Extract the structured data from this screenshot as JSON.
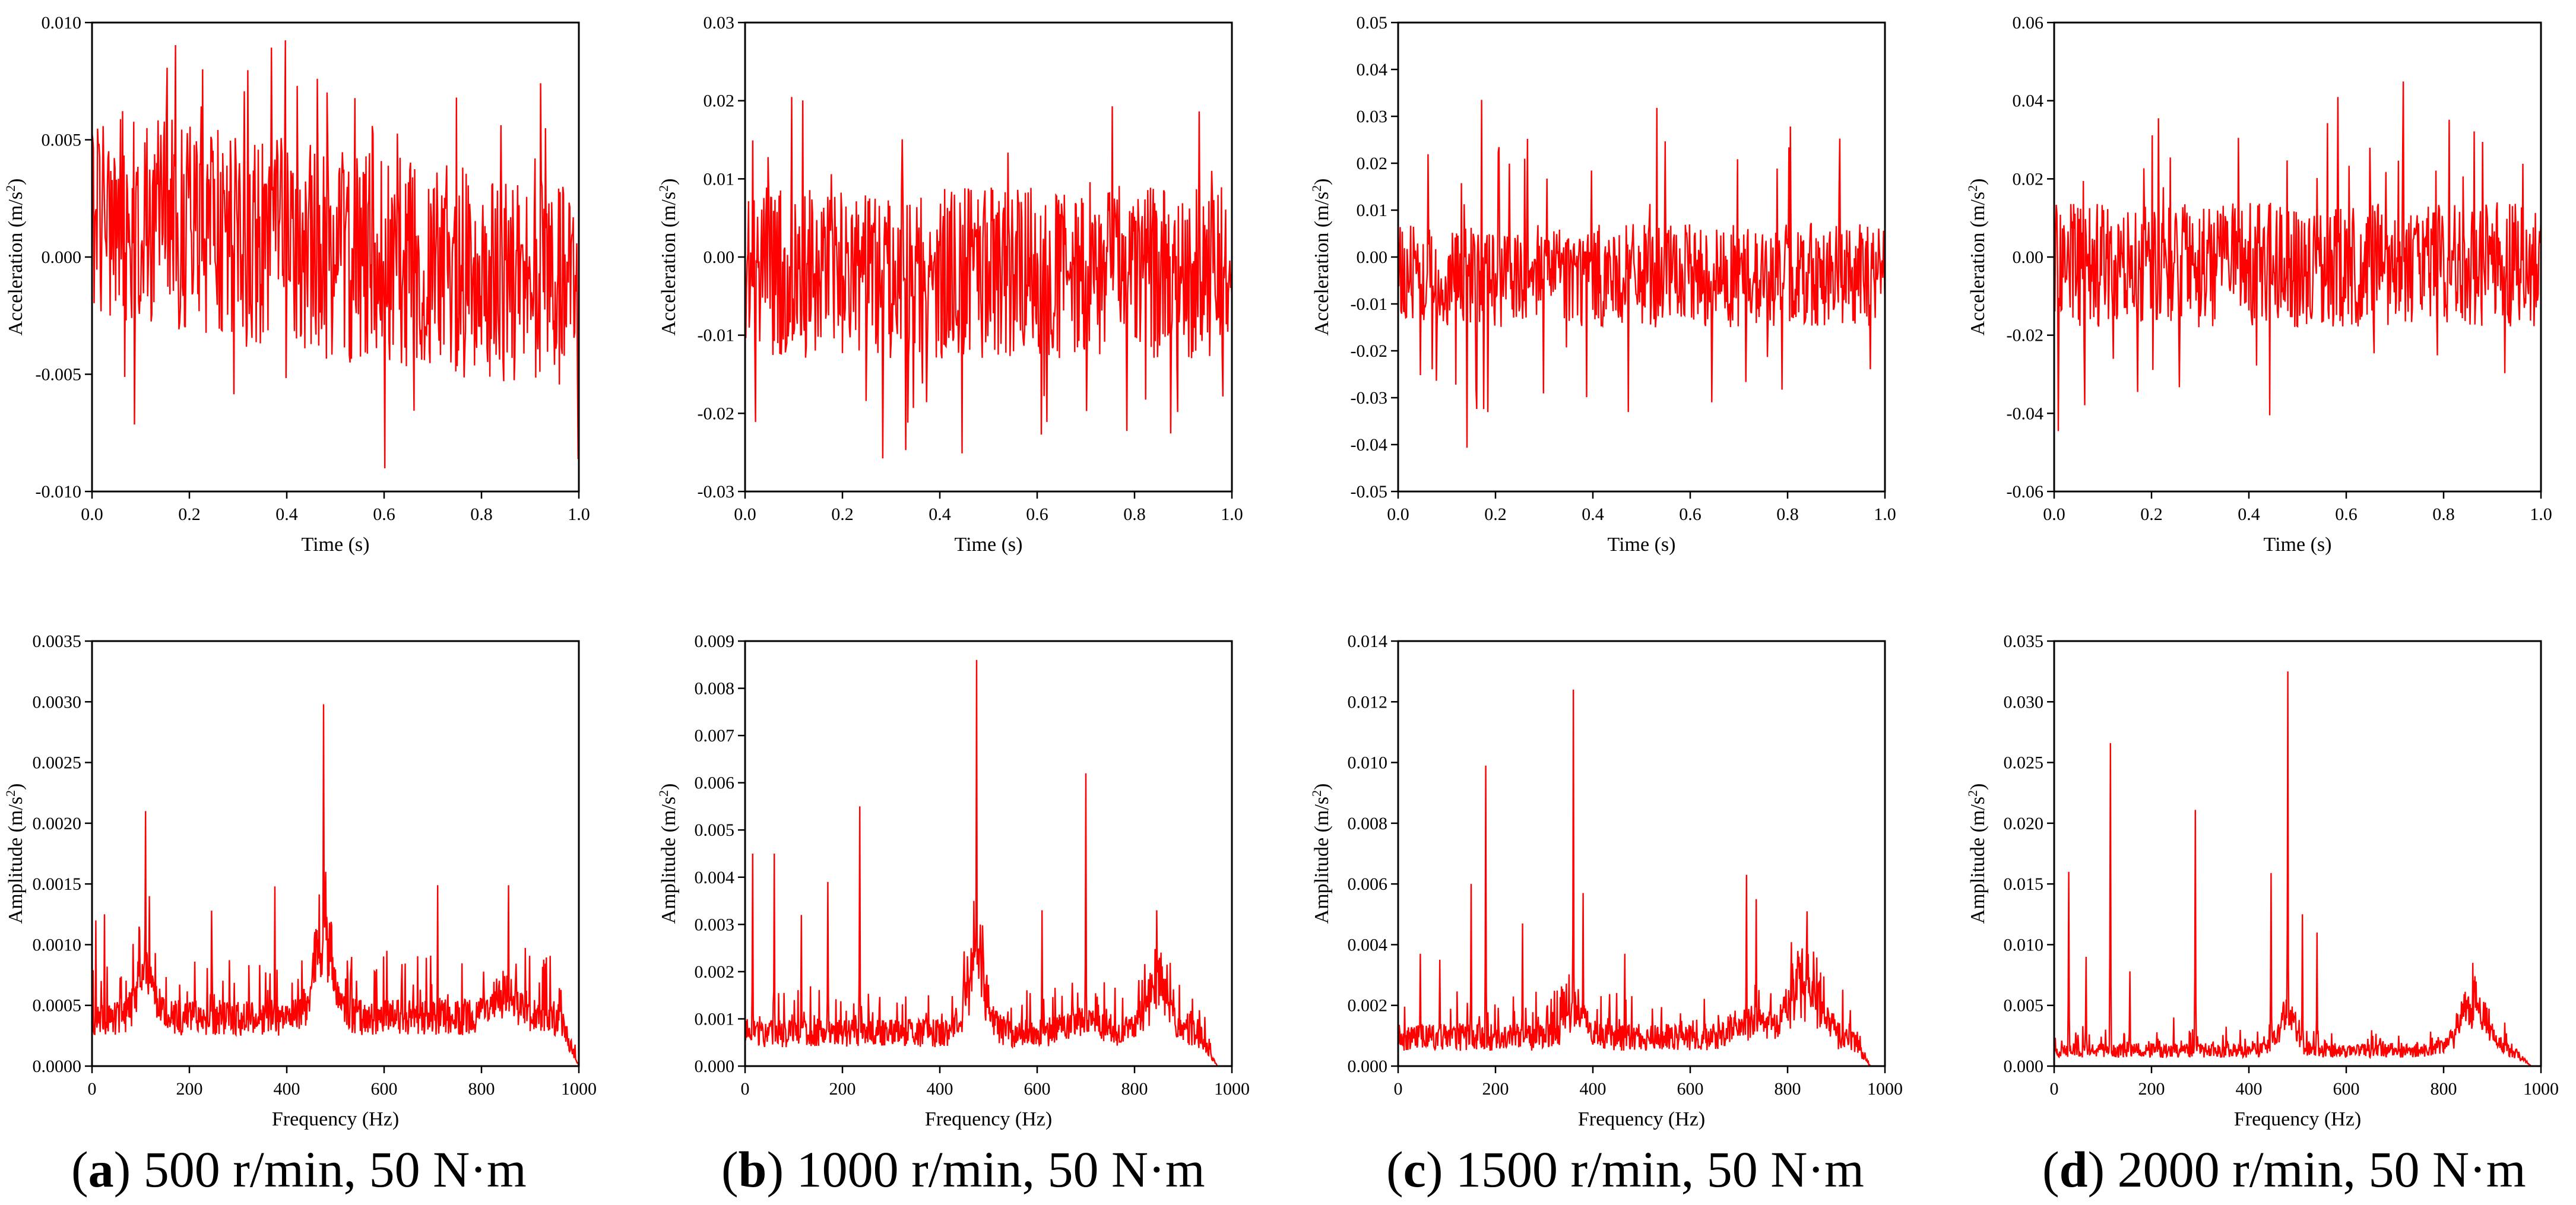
{
  "colors": {
    "signal": "#ff0000",
    "axis": "#000000",
    "background": "#ffffff"
  },
  "panels": [
    {
      "letter": "a",
      "speed": "500 r/min, 50 N·m",
      "time": {
        "xlabel": "Time (s)",
        "ylabel": "Acceleration (m/s²)",
        "xlim": [
          0,
          1
        ],
        "ylim": [
          -0.01,
          0.01
        ],
        "xticks": [
          "0.0",
          "0.2",
          "0.4",
          "0.6",
          "0.8",
          "1.0"
        ],
        "yticks": [
          "-0.010",
          "-0.005",
          "0.000",
          "0.005",
          "0.010"
        ],
        "amp": 0.0045,
        "offset": 0.002,
        "trend": -0.0035,
        "spike": 0.004
      },
      "freq": {
        "xlabel": "Frequency (Hz)",
        "ylabel": "Amplitude (m/s²)",
        "xlim": [
          0,
          1000
        ],
        "ylim": [
          0,
          0.0035
        ],
        "xticks": [
          "0",
          "200",
          "400",
          "600",
          "800",
          "1000"
        ],
        "yticks": [
          "0.0000",
          "0.0005",
          "0.0010",
          "0.0015",
          "0.0020",
          "0.0025",
          "0.0030",
          "0.0035"
        ],
        "base": 0.00025,
        "noise": 0.0003,
        "peaks": [
          [
            8,
            0.0012
          ],
          [
            25,
            0.00125
          ],
          [
            110,
            0.0021
          ],
          [
            118,
            0.0014
          ],
          [
            245,
            0.00128
          ],
          [
            375,
            0.00148
          ],
          [
            475,
            0.00298
          ],
          [
            480,
            0.0016
          ],
          [
            605,
            0.00095
          ],
          [
            710,
            0.00149
          ],
          [
            855,
            0.00149
          ]
        ],
        "humps": [
          [
            110,
            25,
            0.0004
          ],
          [
            475,
            30,
            0.0007
          ],
          [
            850,
            40,
            0.0002
          ]
        ],
        "fade": 960
      }
    },
    {
      "letter": "b",
      "speed": "1000 r/min, 50 N·m",
      "time": {
        "xlabel": "Time (s)",
        "ylabel": "Acceleration (m/s²)",
        "xlim": [
          0,
          1
        ],
        "ylim": [
          -0.03,
          0.03
        ],
        "xticks": [
          "0.0",
          "0.2",
          "0.4",
          "0.6",
          "0.8",
          "1.0"
        ],
        "yticks": [
          "-0.03",
          "-0.02",
          "-0.01",
          "0.00",
          "0.01",
          "0.02",
          "0.03"
        ],
        "amp": 0.011,
        "offset": -0.002,
        "trend": 0,
        "spike": 0.011
      },
      "freq": {
        "xlabel": "Frequency (Hz)",
        "ylabel": "Amplitude (m/s²)",
        "xlim": [
          0,
          1000
        ],
        "ylim": [
          0,
          0.009
        ],
        "xticks": [
          "0",
          "200",
          "400",
          "600",
          "800",
          "1000"
        ],
        "yticks": [
          "0.000",
          "0.001",
          "0.002",
          "0.003",
          "0.004",
          "0.005",
          "0.006",
          "0.007",
          "0.008",
          "0.009"
        ],
        "base": 0.0004,
        "noise": 0.0006,
        "peaks": [
          [
            15,
            0.0045
          ],
          [
            60,
            0.0045
          ],
          [
            115,
            0.0032
          ],
          [
            170,
            0.0039
          ],
          [
            235,
            0.0055
          ],
          [
            475,
            0.0086
          ],
          [
            470,
            0.0035
          ],
          [
            610,
            0.0033
          ],
          [
            700,
            0.0062
          ],
          [
            845,
            0.0033
          ]
        ],
        "humps": [
          [
            475,
            30,
            0.0015
          ],
          [
            845,
            30,
            0.0012
          ],
          [
            700,
            50,
            0.0003
          ]
        ],
        "fade": 930
      }
    },
    {
      "letter": "c",
      "speed": "1500 r/min, 50 N·m",
      "time": {
        "xlabel": "Time (s)",
        "ylabel": "Acceleration (m/s²)",
        "xlim": [
          0,
          1
        ],
        "ylim": [
          -0.05,
          0.05
        ],
        "xticks": [
          "0.0",
          "0.2",
          "0.4",
          "0.6",
          "0.8",
          "1.0"
        ],
        "yticks": [
          "-0.05",
          "-0.04",
          "-0.03",
          "-0.02",
          "-0.01",
          "0.00",
          "0.01",
          "0.02",
          "0.03",
          "0.04",
          "0.05"
        ],
        "amp": 0.011,
        "offset": -0.004,
        "trend": 0,
        "spike": 0.02
      },
      "freq": {
        "xlabel": "Frequency (Hz)",
        "ylabel": "Amplitude (m/s²)",
        "xlim": [
          0,
          1000
        ],
        "ylim": [
          0,
          0.014
        ],
        "xticks": [
          "0",
          "200",
          "400",
          "600",
          "800",
          "1000"
        ],
        "yticks": [
          "0.000",
          "0.002",
          "0.004",
          "0.006",
          "0.008",
          "0.010",
          "0.012",
          "0.014"
        ],
        "base": 0.0005,
        "noise": 0.0009,
        "peaks": [
          [
            45,
            0.0037
          ],
          [
            85,
            0.0035
          ],
          [
            150,
            0.006
          ],
          [
            180,
            0.0099
          ],
          [
            255,
            0.0047
          ],
          [
            360,
            0.0124
          ],
          [
            380,
            0.0057
          ],
          [
            465,
            0.0037
          ],
          [
            715,
            0.0063
          ],
          [
            735,
            0.0055
          ],
          [
            840,
            0.0051
          ]
        ],
        "humps": [
          [
            360,
            30,
            0.001
          ],
          [
            830,
            45,
            0.002
          ],
          [
            720,
            40,
            0.0006
          ]
        ],
        "fade": 930
      }
    },
    {
      "letter": "d",
      "speed": "2000 r/min, 50 N·m",
      "time": {
        "xlabel": "Time (s)",
        "ylabel": "Acceleration (m/s²)",
        "xlim": [
          0,
          1
        ],
        "ylim": [
          -0.06,
          0.06
        ],
        "xticks": [
          "0.0",
          "0.2",
          "0.4",
          "0.6",
          "0.8",
          "1.0"
        ],
        "yticks": [
          "-0.06",
          "-0.04",
          "-0.02",
          "0.00",
          "0.02",
          "0.04",
          "0.06"
        ],
        "amp": 0.016,
        "offset": -0.002,
        "trend": 0,
        "spike": 0.025
      },
      "freq": {
        "xlabel": "Frequency (Hz)",
        "ylabel": "Amplitude (m/s²)",
        "xlim": [
          0,
          1000
        ],
        "ylim": [
          0,
          0.035
        ],
        "xticks": [
          "0",
          "200",
          "400",
          "600",
          "800",
          "1000"
        ],
        "yticks": [
          "0.000",
          "0.005",
          "0.010",
          "0.015",
          "0.020",
          "0.025",
          "0.030",
          "0.035"
        ],
        "base": 0.0007,
        "noise": 0.0012,
        "peaks": [
          [
            30,
            0.016
          ],
          [
            65,
            0.009
          ],
          [
            115,
            0.0266
          ],
          [
            155,
            0.0078
          ],
          [
            245,
            0.004
          ],
          [
            290,
            0.0211
          ],
          [
            445,
            0.0159
          ],
          [
            480,
            0.0325
          ],
          [
            510,
            0.0125
          ],
          [
            540,
            0.011
          ],
          [
            860,
            0.0085
          ]
        ],
        "humps": [
          [
            480,
            25,
            0.003
          ],
          [
            860,
            40,
            0.004
          ]
        ],
        "fade": 940
      }
    }
  ]
}
